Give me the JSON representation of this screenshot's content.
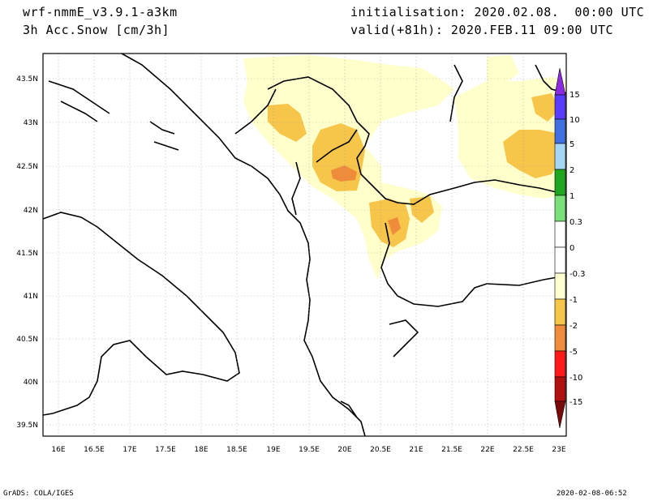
{
  "header": {
    "model": "wrf-nmmE_v3.9.1-a3km",
    "field": "3h Acc.Snow [cm/3h]",
    "init": "initialisation: 2020.02.08.  00:00 UTC",
    "valid": "valid(+81h): 2020.FEB.11 09:00 UTC"
  },
  "axes": {
    "lon_labels": [
      "16E",
      "16.5E",
      "17E",
      "17.5E",
      "18E",
      "18.5E",
      "19E",
      "19.5E",
      "20E",
      "20.5E",
      "21E",
      "21.5E",
      "22E",
      "22.5E",
      "23E"
    ],
    "lat_labels": [
      "43.5N",
      "43N",
      "42.5N",
      "42N",
      "41.5N",
      "41N",
      "40.5N",
      "40N",
      "39.5N"
    ]
  },
  "colorbar": {
    "labels": [
      "15",
      "10",
      "5",
      "2",
      "1",
      "0.3",
      "0",
      "-0.3",
      "-1",
      "-2",
      "-5",
      "-10",
      "-15"
    ],
    "colors": {
      "top_arrow": "#8a2be2",
      "15": "#5a3cff",
      "10": "#3f6fe0",
      "5": "#a6d6f5",
      "2": "#1fa51f",
      "1": "#7be07b",
      "0.3": "#ffffff",
      "0": "#ffffff",
      "-0.3": "#ffffd0",
      "-1": "#f6c54a",
      "-2": "#ee8c3c",
      "-5": "#ff1a1a",
      "-10": "#b01010",
      "bottom_arrow": "#7a0a0a"
    }
  },
  "footer": {
    "left": "GrADS: COLA/IGES",
    "right": "2020-02-08-06:52"
  }
}
